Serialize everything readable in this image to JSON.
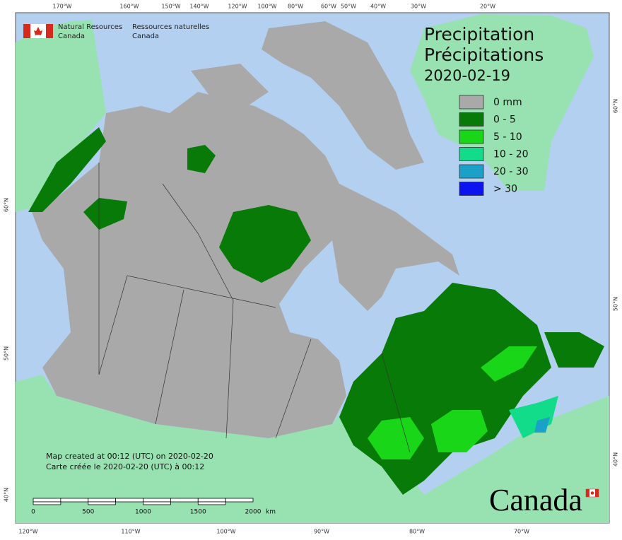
{
  "header": {
    "agency_en": [
      "Natural Resources",
      "Canada"
    ],
    "agency_fr": [
      "Ressources naturelles",
      "Canada"
    ]
  },
  "title": {
    "en": "Precipitation",
    "fr": "Précipitations",
    "date": "2020-02-19"
  },
  "legend": [
    {
      "label": "0 mm",
      "color": "#a9a9a9"
    },
    {
      "label": "0 - 5",
      "color": "#087a08"
    },
    {
      "label": "5 - 10",
      "color": "#19d619"
    },
    {
      "label": "10 - 20",
      "color": "#12dc8a"
    },
    {
      "label": "20 - 30",
      "color": "#1ba0c8"
    },
    {
      "label": "> 30",
      "color": "#0b14f0"
    }
  ],
  "graticule": {
    "top": [
      "170°W",
      "160°W",
      "150°W",
      "140°W",
      "120°W",
      "100°W",
      "80°W",
      "60°W",
      "50°W",
      "40°W",
      "30°W",
      "20°W"
    ],
    "bottom": [
      "120°W",
      "110°W",
      "100°W",
      "90°W",
      "80°W",
      "70°W"
    ],
    "left": [
      "60°N",
      "50°N",
      "40°N"
    ],
    "right": [
      "60°N",
      "50°N",
      "40°N"
    ]
  },
  "footer": {
    "created_en": "Map created at 00:12 (UTC) on 2020-02-20",
    "created_fr": "Carte créée le 2020-02-20 (UTC) à 00:12"
  },
  "scale": {
    "ticks": [
      "0",
      "500",
      "1000",
      "1500",
      "2000"
    ],
    "unit": "km"
  },
  "wordmark": "Canada"
}
